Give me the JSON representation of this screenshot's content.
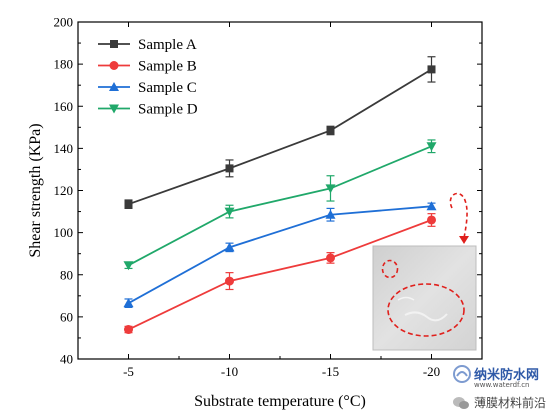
{
  "chart_data": {
    "type": "line",
    "x": [
      -5,
      -10,
      -15,
      -20
    ],
    "x_tick_labels": [
      "-5",
      "-10",
      "-15",
      "-20"
    ],
    "xlabel": "Substrate temperature (°C)",
    "ylabel": "Shear strength (KPa)",
    "xlim": [
      -2.5,
      -22.5
    ],
    "ylim": [
      40,
      200
    ],
    "y_ticks": [
      40,
      60,
      80,
      100,
      120,
      140,
      160,
      180,
      200
    ],
    "legend_position": "top-left",
    "series": [
      {
        "name": "Sample A",
        "color": "#3a3a3a",
        "marker": "square",
        "values": [
          113.5,
          130.5,
          148.5,
          177.5
        ],
        "errors": [
          2,
          4,
          2,
          6
        ]
      },
      {
        "name": "Sample B",
        "color": "#ee3b3b",
        "marker": "circle",
        "values": [
          54,
          77,
          88,
          106
        ],
        "errors": [
          1.5,
          4,
          2.5,
          3
        ]
      },
      {
        "name": "Sample C",
        "color": "#1f6fd6",
        "marker": "triangle-up",
        "values": [
          66.5,
          93,
          108.5,
          112.5
        ],
        "errors": [
          2,
          2,
          3,
          1.5
        ]
      },
      {
        "name": "Sample D",
        "color": "#20a86a",
        "marker": "triangle-down",
        "values": [
          84.5,
          110,
          121,
          141
        ],
        "errors": [
          1.5,
          3,
          6,
          3
        ]
      }
    ]
  },
  "inset": {
    "description_icon": "sample-surface-photo"
  },
  "watermark": {
    "line1": "纳米防水网",
    "url": "www.waterdf.cn",
    "line2": "薄膜材料前沿"
  }
}
